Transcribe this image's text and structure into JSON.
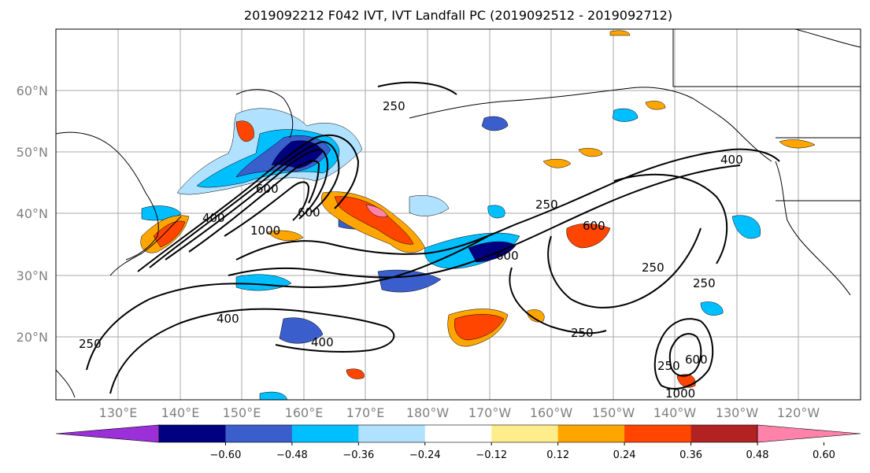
{
  "title": "2019092212 F042 IVT, IVT Landfall PC (2019092512 - 2019092712)",
  "lat_labels": [
    "60°N",
    "50°N",
    "40°N",
    "30°N",
    "20°N"
  ],
  "lon_labels": [
    "130°E",
    "140°E",
    "150°E",
    "160°E",
    "170°E",
    "180°W",
    "170°W",
    "160°W",
    "150°W",
    "140°W",
    "130°W",
    "120°W"
  ],
  "colorbar": {
    "colors": [
      "#9b30d9",
      "#000080",
      "#3a5fcd",
      "#00bfff",
      "#b0e2ff",
      "#ffffff",
      "#ffec8b",
      "#ffa500",
      "#ff4500",
      "#b22222",
      "#ff82ab"
    ],
    "labels": [
      "−0.60",
      "−0.48",
      "−0.36",
      "−0.24",
      "−0.12",
      "0.12",
      "0.24",
      "0.36",
      "0.48",
      "0.60"
    ]
  },
  "contour_labels": [
    "250",
    "400",
    "600",
    "1000",
    "600",
    "400",
    "250",
    "250",
    "400",
    "250",
    "400",
    "250",
    "600",
    "600",
    "250",
    "250",
    "250",
    "250",
    "600",
    "250",
    "400",
    "250",
    "1000"
  ]
}
